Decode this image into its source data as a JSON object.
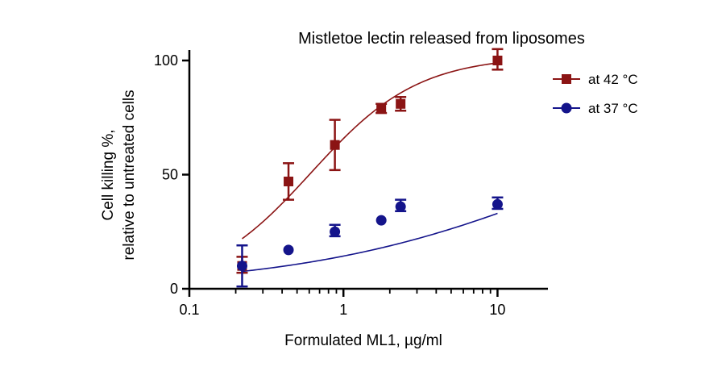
{
  "chart_data": {
    "type": "scatter",
    "title": "Mistletoe lectin released from liposomes",
    "xlabel": "Formulated ML1, µg/ml",
    "ylabel_line1": "Cell killing %,",
    "ylabel_line2": "relative to untreated cells",
    "xscale": "log",
    "xlim": [
      0.1,
      20
    ],
    "ylim": [
      0,
      100
    ],
    "xticks": [
      0.1,
      1,
      10
    ],
    "xtick_labels": [
      "0.1",
      "1",
      "10"
    ],
    "yticks": [
      0,
      50,
      100
    ],
    "ytick_labels": [
      "0",
      "50",
      "100"
    ],
    "legend_position": "top-right",
    "series": [
      {
        "name": "at 42 °C",
        "color": "#8b1414",
        "marker": "square",
        "x": [
          0.22,
          0.44,
          0.88,
          1.76,
          2.35,
          10
        ],
        "y": [
          10,
          47,
          63,
          79,
          81,
          100
        ],
        "err_low": [
          3,
          8,
          11,
          2,
          3,
          4
        ],
        "err_high": [
          4,
          8,
          11,
          2,
          3,
          5
        ],
        "fit": {
          "bottom": 0,
          "top": 102,
          "ec50": 0.62,
          "hill": 1.25
        }
      },
      {
        "name": "at 37 °C",
        "color": "#14148b",
        "marker": "circle",
        "x": [
          0.22,
          0.44,
          0.88,
          1.76,
          2.35,
          10
        ],
        "y": [
          10,
          17,
          25,
          30,
          36,
          37
        ],
        "err_low": [
          9,
          0,
          2,
          0,
          2,
          2
        ],
        "err_high": [
          9,
          0,
          3,
          0,
          3,
          3
        ],
        "fit": {
          "bottom": 0,
          "top": 100,
          "ec50": 45,
          "hill": 0.47
        }
      }
    ]
  }
}
